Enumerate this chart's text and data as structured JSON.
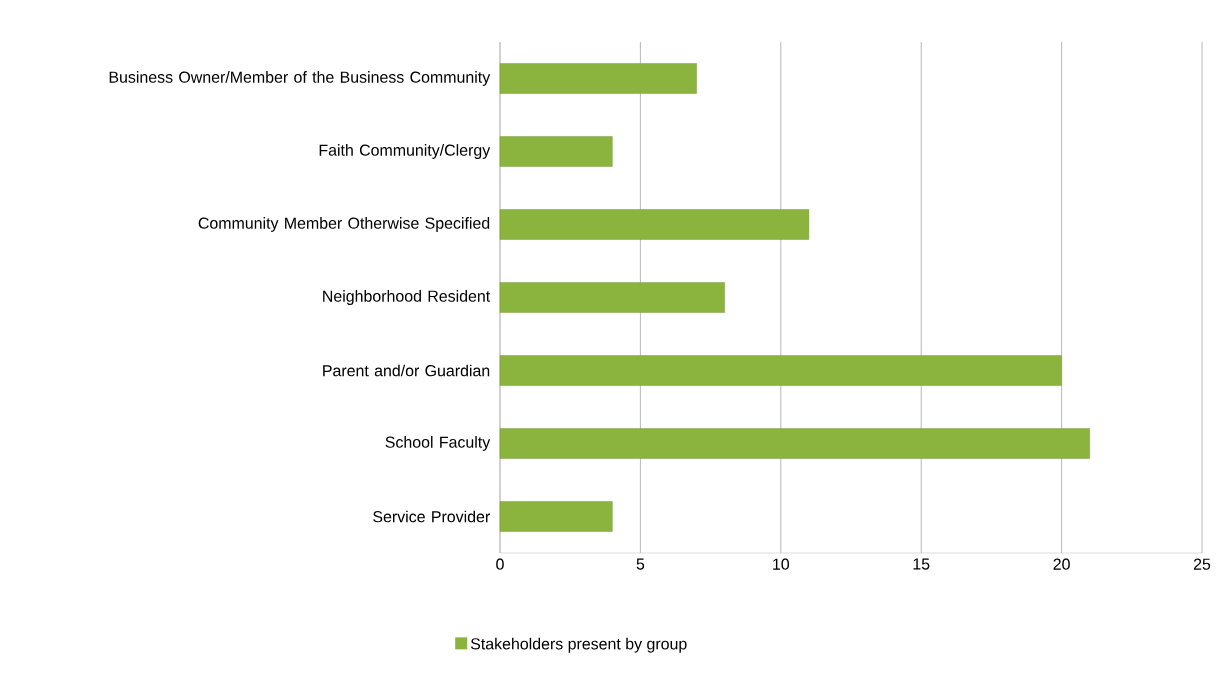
{
  "chart_data": {
    "type": "bar",
    "orientation": "horizontal",
    "categories": [
      "Business Owner/Member of the Business Community",
      "Faith Community/Clergy",
      "Community Member Otherwise Specified",
      "Neighborhood Resident",
      "Parent and/or Guardian",
      "School Faculty",
      "Service Provider"
    ],
    "series": [
      {
        "name": "Stakeholders present by group",
        "color": "#8ab43e",
        "values": [
          7,
          4,
          11,
          8,
          20,
          21,
          4
        ]
      }
    ],
    "xlim": [
      0,
      25
    ],
    "xticks": [
      0,
      5,
      10,
      15,
      20,
      25
    ],
    "grid": "x",
    "legend": "bottom"
  }
}
